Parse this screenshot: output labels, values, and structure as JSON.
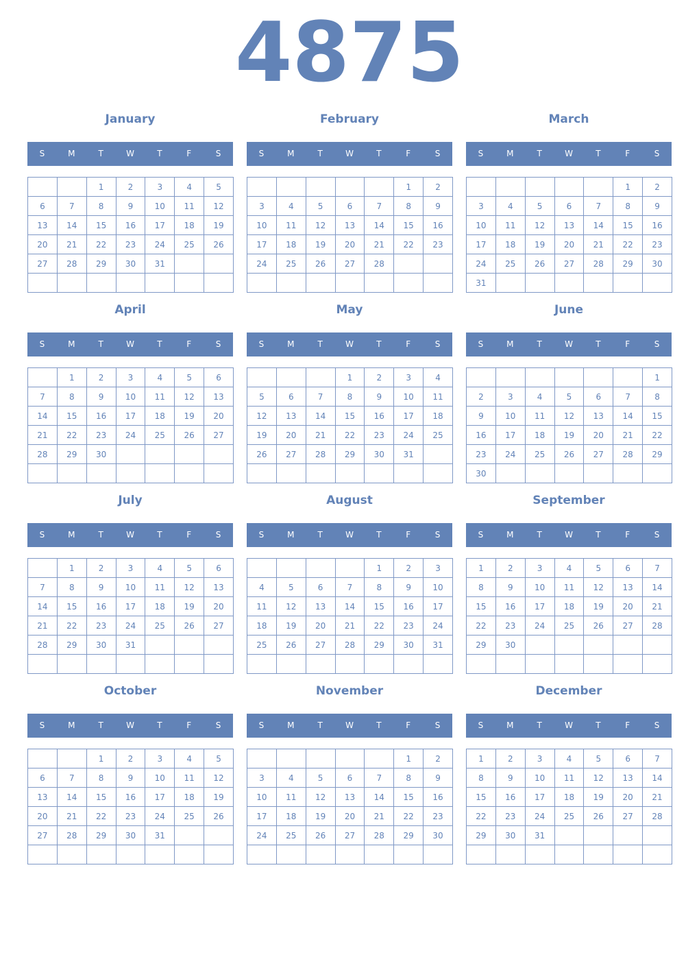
{
  "year": "4875",
  "weekdays": [
    "S",
    "M",
    "T",
    "W",
    "T",
    "F",
    "S"
  ],
  "colors": {
    "accent": "#6283b7",
    "grid": "#7f98c6"
  },
  "months": [
    {
      "name": "January",
      "weeks": [
        [
          null,
          null,
          1,
          2,
          3,
          4,
          5
        ],
        [
          6,
          7,
          8,
          9,
          10,
          11,
          12
        ],
        [
          13,
          14,
          15,
          16,
          17,
          18,
          19
        ],
        [
          20,
          21,
          22,
          23,
          24,
          25,
          26
        ],
        [
          27,
          28,
          29,
          30,
          31,
          null,
          null
        ],
        [
          null,
          null,
          null,
          null,
          null,
          null,
          null
        ]
      ]
    },
    {
      "name": "February",
      "weeks": [
        [
          null,
          null,
          null,
          null,
          null,
          1,
          2
        ],
        [
          3,
          4,
          5,
          6,
          7,
          8,
          9
        ],
        [
          10,
          11,
          12,
          13,
          14,
          15,
          16
        ],
        [
          17,
          18,
          19,
          20,
          21,
          22,
          23
        ],
        [
          24,
          25,
          26,
          27,
          28,
          null,
          null
        ],
        [
          null,
          null,
          null,
          null,
          null,
          null,
          null
        ]
      ]
    },
    {
      "name": "March",
      "weeks": [
        [
          null,
          null,
          null,
          null,
          null,
          1,
          2
        ],
        [
          3,
          4,
          5,
          6,
          7,
          8,
          9
        ],
        [
          10,
          11,
          12,
          13,
          14,
          15,
          16
        ],
        [
          17,
          18,
          19,
          20,
          21,
          22,
          23
        ],
        [
          24,
          25,
          26,
          27,
          28,
          29,
          30
        ],
        [
          31,
          null,
          null,
          null,
          null,
          null,
          null
        ]
      ]
    },
    {
      "name": "April",
      "weeks": [
        [
          null,
          1,
          2,
          3,
          4,
          5,
          6
        ],
        [
          7,
          8,
          9,
          10,
          11,
          12,
          13
        ],
        [
          14,
          15,
          16,
          17,
          18,
          19,
          20
        ],
        [
          21,
          22,
          23,
          24,
          25,
          26,
          27
        ],
        [
          28,
          29,
          30,
          null,
          null,
          null,
          null
        ],
        [
          null,
          null,
          null,
          null,
          null,
          null,
          null
        ]
      ]
    },
    {
      "name": "May",
      "weeks": [
        [
          null,
          null,
          null,
          1,
          2,
          3,
          4
        ],
        [
          5,
          6,
          7,
          8,
          9,
          10,
          11
        ],
        [
          12,
          13,
          14,
          15,
          16,
          17,
          18
        ],
        [
          19,
          20,
          21,
          22,
          23,
          24,
          25
        ],
        [
          26,
          27,
          28,
          29,
          30,
          31,
          null
        ],
        [
          null,
          null,
          null,
          null,
          null,
          null,
          null
        ]
      ]
    },
    {
      "name": "June",
      "weeks": [
        [
          null,
          null,
          null,
          null,
          null,
          null,
          1
        ],
        [
          2,
          3,
          4,
          5,
          6,
          7,
          8
        ],
        [
          9,
          10,
          11,
          12,
          13,
          14,
          15
        ],
        [
          16,
          17,
          18,
          19,
          20,
          21,
          22
        ],
        [
          23,
          24,
          25,
          26,
          27,
          28,
          29
        ],
        [
          30,
          null,
          null,
          null,
          null,
          null,
          null
        ]
      ]
    },
    {
      "name": "July",
      "weeks": [
        [
          null,
          1,
          2,
          3,
          4,
          5,
          6
        ],
        [
          7,
          8,
          9,
          10,
          11,
          12,
          13
        ],
        [
          14,
          15,
          16,
          17,
          18,
          19,
          20
        ],
        [
          21,
          22,
          23,
          24,
          25,
          26,
          27
        ],
        [
          28,
          29,
          30,
          31,
          null,
          null,
          null
        ],
        [
          null,
          null,
          null,
          null,
          null,
          null,
          null
        ]
      ]
    },
    {
      "name": "August",
      "weeks": [
        [
          null,
          null,
          null,
          null,
          1,
          2,
          3
        ],
        [
          4,
          5,
          6,
          7,
          8,
          9,
          10
        ],
        [
          11,
          12,
          13,
          14,
          15,
          16,
          17
        ],
        [
          18,
          19,
          20,
          21,
          22,
          23,
          24
        ],
        [
          25,
          26,
          27,
          28,
          29,
          30,
          31
        ],
        [
          null,
          null,
          null,
          null,
          null,
          null,
          null
        ]
      ]
    },
    {
      "name": "September",
      "weeks": [
        [
          1,
          2,
          3,
          4,
          5,
          6,
          7
        ],
        [
          8,
          9,
          10,
          11,
          12,
          13,
          14
        ],
        [
          15,
          16,
          17,
          18,
          19,
          20,
          21
        ],
        [
          22,
          23,
          24,
          25,
          26,
          27,
          28
        ],
        [
          29,
          30,
          null,
          null,
          null,
          null,
          null
        ],
        [
          null,
          null,
          null,
          null,
          null,
          null,
          null
        ]
      ]
    },
    {
      "name": "October",
      "weeks": [
        [
          null,
          null,
          1,
          2,
          3,
          4,
          5
        ],
        [
          6,
          7,
          8,
          9,
          10,
          11,
          12
        ],
        [
          13,
          14,
          15,
          16,
          17,
          18,
          19
        ],
        [
          20,
          21,
          22,
          23,
          24,
          25,
          26
        ],
        [
          27,
          28,
          29,
          30,
          31,
          null,
          null
        ],
        [
          null,
          null,
          null,
          null,
          null,
          null,
          null
        ]
      ]
    },
    {
      "name": "November",
      "weeks": [
        [
          null,
          null,
          null,
          null,
          null,
          1,
          2
        ],
        [
          3,
          4,
          5,
          6,
          7,
          8,
          9
        ],
        [
          10,
          11,
          12,
          13,
          14,
          15,
          16
        ],
        [
          17,
          18,
          19,
          20,
          21,
          22,
          23
        ],
        [
          24,
          25,
          26,
          27,
          28,
          29,
          30
        ],
        [
          null,
          null,
          null,
          null,
          null,
          null,
          null
        ]
      ]
    },
    {
      "name": "December",
      "weeks": [
        [
          1,
          2,
          3,
          4,
          5,
          6,
          7
        ],
        [
          8,
          9,
          10,
          11,
          12,
          13,
          14
        ],
        [
          15,
          16,
          17,
          18,
          19,
          20,
          21
        ],
        [
          22,
          23,
          24,
          25,
          26,
          27,
          28
        ],
        [
          29,
          30,
          31,
          null,
          null,
          null,
          null
        ],
        [
          null,
          null,
          null,
          null,
          null,
          null,
          null
        ]
      ]
    }
  ]
}
